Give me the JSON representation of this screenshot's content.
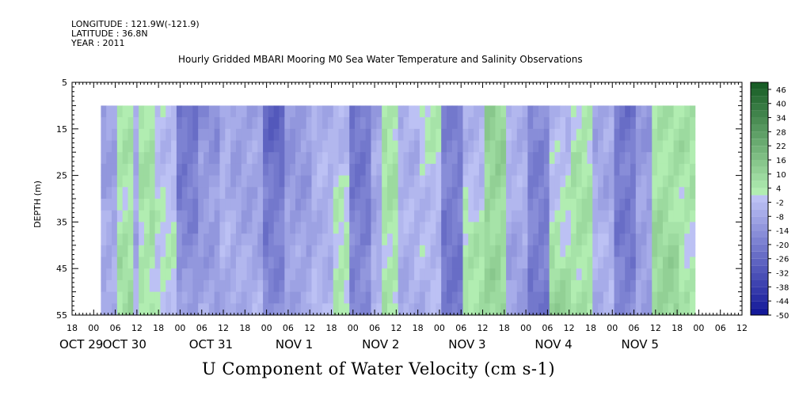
{
  "header": {
    "longitude": "LONGITUDE : 121.9W(-121.9)",
    "latitude": "LATITUDE : 36.8N",
    "year": "YEAR : 2011"
  },
  "chart_data": {
    "type": "heatmap",
    "title": "Hourly Gridded MBARI Mooring M0 Sea Water Temperature and Salinity Observations",
    "xlabel": "U Component of Water Velocity (cm s-1)",
    "ylabel": "DEPTH (m)",
    "xlim_hours": [
      -6,
      180
    ],
    "ylim": [
      55,
      5
    ],
    "y_ticks": [
      5,
      15,
      25,
      35,
      45,
      55
    ],
    "x_hour_ticks": [
      {
        "hour": -6,
        "label": "18"
      },
      {
        "hour": 0,
        "label": "00"
      },
      {
        "hour": 6,
        "label": "06"
      },
      {
        "hour": 12,
        "label": "12"
      },
      {
        "hour": 18,
        "label": "18"
      },
      {
        "hour": 24,
        "label": "00"
      },
      {
        "hour": 30,
        "label": "06"
      },
      {
        "hour": 36,
        "label": "12"
      },
      {
        "hour": 42,
        "label": "18"
      },
      {
        "hour": 48,
        "label": "00"
      },
      {
        "hour": 54,
        "label": "06"
      },
      {
        "hour": 60,
        "label": "12"
      },
      {
        "hour": 66,
        "label": "18"
      },
      {
        "hour": 72,
        "label": "00"
      },
      {
        "hour": 78,
        "label": "06"
      },
      {
        "hour": 84,
        "label": "12"
      },
      {
        "hour": 90,
        "label": "18"
      },
      {
        "hour": 96,
        "label": "00"
      },
      {
        "hour": 102,
        "label": "06"
      },
      {
        "hour": 108,
        "label": "12"
      },
      {
        "hour": 114,
        "label": "18"
      },
      {
        "hour": 120,
        "label": "00"
      },
      {
        "hour": 126,
        "label": "06"
      },
      {
        "hour": 132,
        "label": "12"
      },
      {
        "hour": 138,
        "label": "18"
      },
      {
        "hour": 144,
        "label": "00"
      },
      {
        "hour": 150,
        "label": "06"
      },
      {
        "hour": 156,
        "label": "12"
      },
      {
        "hour": 162,
        "label": "18"
      },
      {
        "hour": 168,
        "label": "00"
      },
      {
        "hour": 174,
        "label": "06"
      },
      {
        "hour": 180,
        "label": "12"
      }
    ],
    "x_date_labels": [
      {
        "hour": -6,
        "label": "OCT 29"
      },
      {
        "hour": 6,
        "label": "OCT 30"
      },
      {
        "hour": 30,
        "label": "OCT 31"
      },
      {
        "hour": 54,
        "label": "NOV 1"
      },
      {
        "hour": 78,
        "label": "NOV 2"
      },
      {
        "hour": 102,
        "label": "NOV 3"
      },
      {
        "hour": 126,
        "label": "NOV 4"
      },
      {
        "hour": 150,
        "label": "NOV 5"
      }
    ],
    "data_extent": {
      "hour_start": 2,
      "hour_end": 167,
      "depth_top": 10,
      "depth_bottom": 55
    },
    "colorbar": {
      "levels": [
        -50,
        -47,
        -44,
        -41,
        -38,
        -35,
        -32,
        -29,
        -26,
        -23,
        -20,
        -17,
        -14,
        -11,
        -8,
        -5,
        -2,
        1,
        4,
        7,
        10,
        13,
        16,
        19,
        22,
        25,
        28,
        31,
        34,
        37,
        40,
        43,
        46,
        49
      ],
      "tick_labels": [
        "46",
        "40",
        "34",
        "28",
        "22",
        "16",
        "10",
        "4",
        "-2",
        "-8",
        "-14",
        "-20",
        "-26",
        "-32",
        "-38",
        "-44",
        "-50"
      ],
      "tick_values": [
        46,
        40,
        34,
        28,
        22,
        16,
        10,
        4,
        -2,
        -8,
        -14,
        -20,
        -26,
        -32,
        -38,
        -44,
        -50
      ],
      "negative_color": "#3c5fe6",
      "positive_color": "#2ad85a"
    },
    "u_velocity_grid_note": "values in cm s-1 reconstructed at 2-hour x 2.5 m resolution",
    "values": [
      {
        "hour_range": [
          2,
          167
        ],
        "depth_range": [
          10,
          55
        ]
      }
    ]
  },
  "field_model": {
    "time_bands": [
      {
        "from": 2,
        "to": 6,
        "surface": -10,
        "bottom": -6
      },
      {
        "from": 6,
        "to": 10,
        "surface": 4,
        "bottom": 6
      },
      {
        "from": 10,
        "to": 12,
        "surface": -8,
        "bottom": -6
      },
      {
        "from": 12,
        "to": 17,
        "surface": 6,
        "bottom": 4
      },
      {
        "from": 17,
        "to": 22,
        "surface": -2,
        "bottom": 2
      },
      {
        "from": 22,
        "to": 28,
        "surface": -24,
        "bottom": -10
      },
      {
        "from": 28,
        "to": 34,
        "surface": -14,
        "bottom": -8
      },
      {
        "from": 34,
        "to": 38,
        "surface": -4,
        "bottom": -6
      },
      {
        "from": 38,
        "to": 46,
        "surface": -10,
        "bottom": -6
      },
      {
        "from": 46,
        "to": 52,
        "surface": -26,
        "bottom": -14
      },
      {
        "from": 52,
        "to": 60,
        "surface": -12,
        "bottom": -8
      },
      {
        "from": 60,
        "to": 66,
        "surface": -6,
        "bottom": -4
      },
      {
        "from": 66,
        "to": 70,
        "surface": -4,
        "bottom": 6
      },
      {
        "from": 70,
        "to": 76,
        "surface": -22,
        "bottom": -16
      },
      {
        "from": 76,
        "to": 80,
        "surface": -10,
        "bottom": -4
      },
      {
        "from": 80,
        "to": 84,
        "surface": 5,
        "bottom": 4
      },
      {
        "from": 84,
        "to": 90,
        "surface": -4,
        "bottom": -6
      },
      {
        "from": 90,
        "to": 96,
        "surface": 2,
        "bottom": -6
      },
      {
        "from": 96,
        "to": 102,
        "surface": -18,
        "bottom": -22
      },
      {
        "from": 102,
        "to": 108,
        "surface": -6,
        "bottom": 8
      },
      {
        "from": 108,
        "to": 114,
        "surface": 10,
        "bottom": 8
      },
      {
        "from": 114,
        "to": 120,
        "surface": -4,
        "bottom": -10
      },
      {
        "from": 120,
        "to": 126,
        "surface": -16,
        "bottom": -22
      },
      {
        "from": 126,
        "to": 132,
        "surface": -6,
        "bottom": 10
      },
      {
        "from": 132,
        "to": 138,
        "surface": 4,
        "bottom": 6
      },
      {
        "from": 138,
        "to": 144,
        "surface": -8,
        "bottom": -4
      },
      {
        "from": 144,
        "to": 150,
        "surface": -22,
        "bottom": -18
      },
      {
        "from": 150,
        "to": 154,
        "surface": -12,
        "bottom": -8
      },
      {
        "from": 154,
        "to": 162,
        "surface": 4,
        "bottom": 10
      },
      {
        "from": 162,
        "to": 167,
        "surface": 6,
        "bottom": 2
      }
    ]
  }
}
